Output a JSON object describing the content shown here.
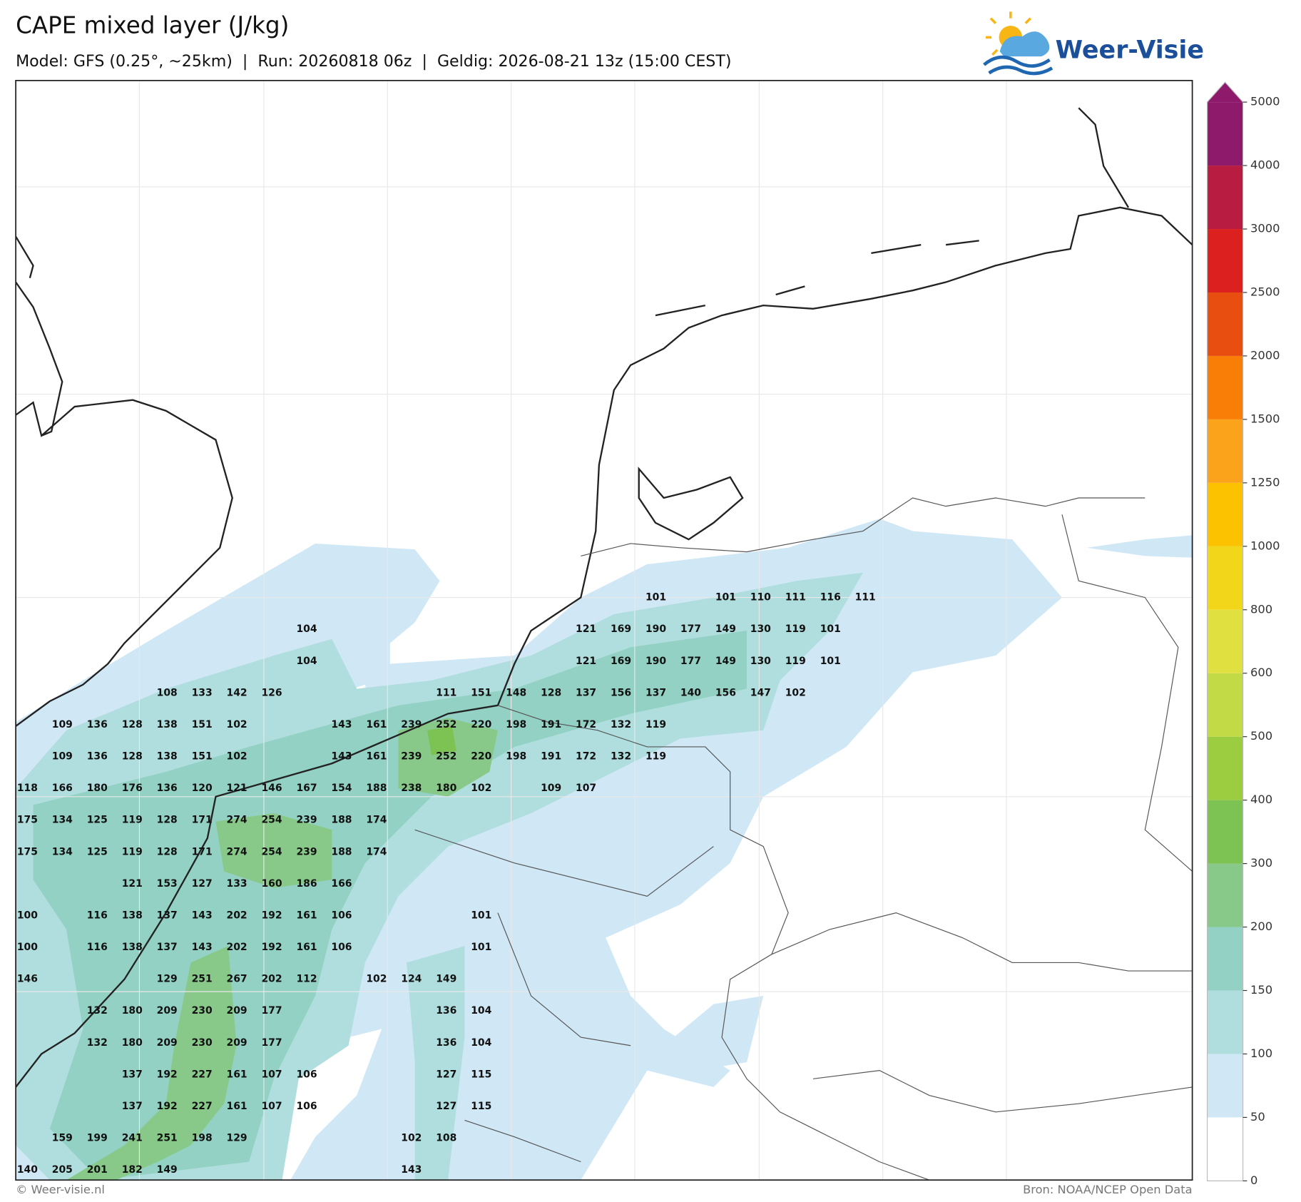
{
  "header": {
    "title": "CAPE mixed layer (J/kg)",
    "subtitle": "Model: GFS (0.25°, ~25km)  |  Run: 20260818 06z  |  Geldig: 2026-08-21 13z (15:00 CEST)"
  },
  "logo": {
    "text": "Weer-Visie"
  },
  "map": {
    "value_grid": [
      [
        null,
        null,
        null,
        null,
        null,
        null,
        null,
        null,
        null,
        null,
        null,
        null,
        null,
        null,
        null,
        null,
        null,
        null,
        101,
        null,
        101,
        110,
        111,
        116,
        111
      ],
      [
        null,
        null,
        null,
        null,
        null,
        null,
        null,
        null,
        104,
        null,
        null,
        null,
        null,
        null,
        null,
        null,
        121,
        169,
        190,
        177,
        149,
        130,
        119,
        101,
        null
      ],
      [
        null,
        null,
        null,
        null,
        null,
        null,
        null,
        null,
        104,
        null,
        null,
        null,
        null,
        null,
        null,
        null,
        121,
        169,
        190,
        177,
        149,
        130,
        119,
        101,
        null
      ],
      [
        null,
        null,
        null,
        null,
        108,
        133,
        142,
        126,
        null,
        null,
        null,
        null,
        111,
        151,
        148,
        128,
        137,
        156,
        137,
        140,
        156,
        147,
        102,
        null,
        null
      ],
      [
        null,
        109,
        136,
        128,
        138,
        151,
        102,
        null,
        null,
        143,
        161,
        239,
        252,
        220,
        198,
        191,
        172,
        132,
        119,
        null,
        null,
        null,
        null,
        null,
        null
      ],
      [
        null,
        109,
        136,
        128,
        138,
        151,
        102,
        null,
        null,
        143,
        161,
        239,
        252,
        220,
        198,
        191,
        172,
        132,
        119,
        null,
        null,
        null,
        null,
        null,
        null
      ],
      [
        118,
        166,
        180,
        176,
        136,
        120,
        121,
        146,
        167,
        154,
        188,
        238,
        180,
        102,
        null,
        109,
        107,
        null,
        null,
        null,
        null,
        null,
        null,
        null,
        null
      ],
      [
        175,
        134,
        125,
        119,
        128,
        171,
        274,
        254,
        239,
        188,
        174,
        null,
        null,
        null,
        null,
        null,
        null,
        null,
        null,
        null,
        null,
        null,
        null,
        null,
        null
      ],
      [
        175,
        134,
        125,
        119,
        128,
        171,
        274,
        254,
        239,
        188,
        174,
        null,
        null,
        null,
        null,
        null,
        null,
        null,
        null,
        null,
        null,
        null,
        null,
        null,
        null
      ],
      [
        null,
        null,
        null,
        121,
        153,
        127,
        133,
        160,
        186,
        166,
        null,
        null,
        null,
        null,
        null,
        null,
        null,
        null,
        null,
        null,
        null,
        null,
        null,
        null,
        null
      ],
      [
        100,
        null,
        116,
        138,
        137,
        143,
        202,
        192,
        161,
        106,
        null,
        null,
        null,
        101,
        null,
        null,
        null,
        null,
        null,
        null,
        null,
        null,
        null,
        null,
        null
      ],
      [
        100,
        null,
        116,
        138,
        137,
        143,
        202,
        192,
        161,
        106,
        null,
        null,
        null,
        101,
        null,
        null,
        null,
        null,
        null,
        null,
        null,
        null,
        null,
        null,
        null
      ],
      [
        146,
        null,
        null,
        null,
        129,
        251,
        267,
        202,
        112,
        null,
        102,
        124,
        149,
        null,
        null,
        null,
        null,
        null,
        null,
        null,
        null,
        null,
        null,
        null,
        null
      ],
      [
        null,
        null,
        132,
        180,
        209,
        230,
        209,
        177,
        null,
        null,
        null,
        null,
        136,
        104,
        null,
        null,
        null,
        null,
        null,
        null,
        null,
        null,
        null,
        null,
        null
      ],
      [
        null,
        null,
        132,
        180,
        209,
        230,
        209,
        177,
        null,
        null,
        null,
        null,
        136,
        104,
        null,
        null,
        null,
        null,
        null,
        null,
        null,
        null,
        null,
        null,
        null
      ],
      [
        null,
        null,
        null,
        137,
        192,
        227,
        161,
        107,
        106,
        null,
        null,
        null,
        127,
        115,
        null,
        null,
        null,
        null,
        null,
        null,
        null,
        null,
        null,
        null,
        null
      ],
      [
        null,
        null,
        null,
        137,
        192,
        227,
        161,
        107,
        106,
        null,
        null,
        null,
        127,
        115,
        null,
        null,
        null,
        null,
        null,
        null,
        null,
        null,
        null,
        null,
        null
      ],
      [
        null,
        159,
        199,
        241,
        251,
        198,
        129,
        null,
        null,
        null,
        null,
        102,
        108,
        null,
        null,
        null,
        null,
        null,
        null,
        null,
        null,
        null,
        null,
        null,
        null
      ],
      [
        140,
        205,
        201,
        182,
        149,
        null,
        null,
        null,
        null,
        null,
        null,
        143,
        null,
        null,
        null,
        null,
        null,
        null,
        null,
        null,
        null,
        null,
        null,
        null,
        null
      ]
    ]
  },
  "colorbar": {
    "ticks": [
      0,
      50,
      100,
      150,
      200,
      300,
      400,
      500,
      600,
      800,
      1000,
      1250,
      1500,
      2000,
      2500,
      3000,
      4000,
      5000
    ],
    "colors": [
      "#ffffff",
      "#d0e7f6",
      "#b0dede",
      "#92d1c3",
      "#88c98a",
      "#7dc354",
      "#9ccc40",
      "#c2da46",
      "#e0e040",
      "#f2d619",
      "#fcc200",
      "#fba31a",
      "#f87e07",
      "#e84e10",
      "#dc2020",
      "#b81c40",
      "#8e1a6c"
    ]
  },
  "footer": {
    "left": "© Weer-visie.nl",
    "right": "Bron: NOAA/NCEP Open Data"
  }
}
